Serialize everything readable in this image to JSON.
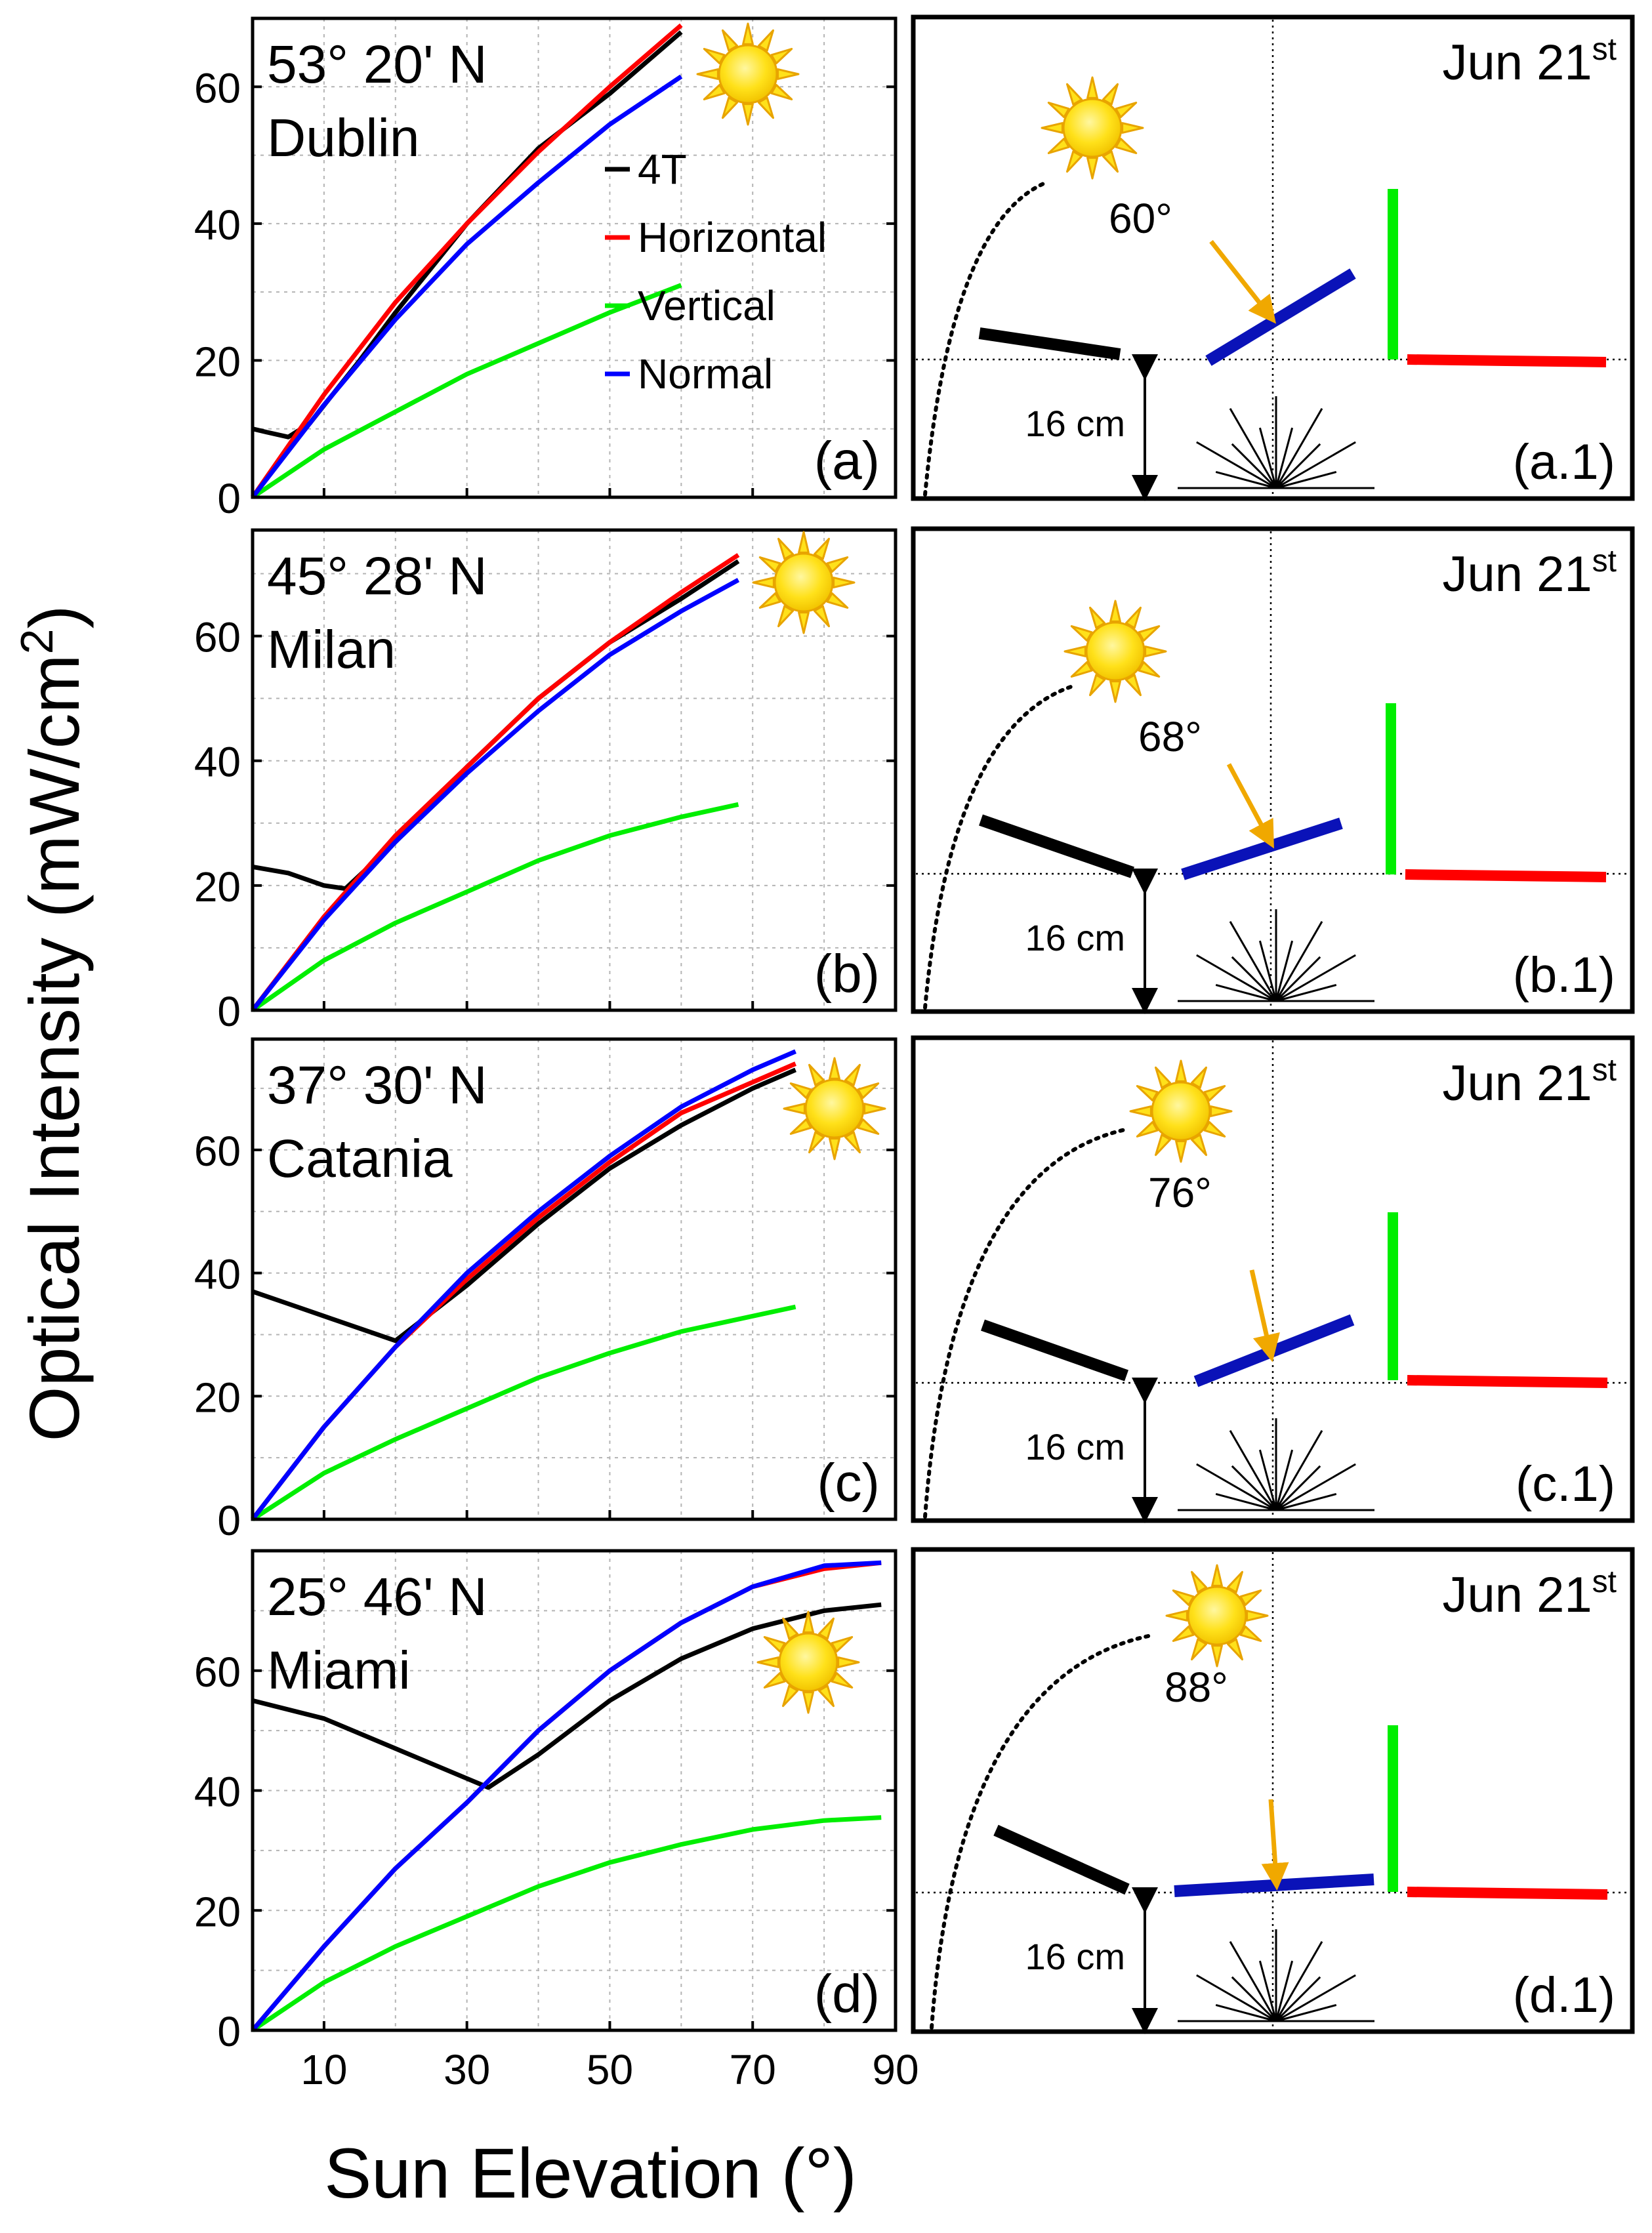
{
  "figure": {
    "ylabel": "Optical Intensity (mW/cm",
    "ylabel_sup": "2",
    "ylabel_close": ")",
    "xlabel": "Sun Elevation (°)",
    "x_ticks": [
      "10",
      "30",
      "50",
      "70",
      "90"
    ],
    "legend": [
      {
        "name": "4T",
        "color": "#000000"
      },
      {
        "name": "Horizontal",
        "color": "#ff0000"
      },
      {
        "name": "Vertical",
        "color": "#00ee00"
      },
      {
        "name": "Normal",
        "color": "#0000ff"
      }
    ]
  },
  "diagram_common": {
    "date_main": "Jun 21",
    "date_sup": "st",
    "height_label": "16 cm"
  },
  "chart_data": [
    {
      "type": "line",
      "panel": "(a)",
      "lat": "53° 20' N",
      "city": "Dublin",
      "xlim": [
        0,
        90
      ],
      "ylim": [
        0,
        70
      ],
      "y_ticks": [
        "0",
        "20",
        "40",
        "60"
      ],
      "y_tick_values": [
        0,
        20,
        40,
        60
      ],
      "xlabel": "Sun Elevation (°)",
      "ylabel": "Optical Intensity (mW/cm2)",
      "grid": true,
      "series": [
        {
          "name": "4T",
          "color": "#000000",
          "x": [
            0,
            2,
            5,
            8,
            15,
            20,
            30,
            40,
            50,
            60
          ],
          "y": [
            10,
            9.5,
            8.8,
            10.8,
            20,
            27,
            40,
            51,
            59,
            68
          ]
        },
        {
          "name": "Horizontal",
          "color": "#ff0000",
          "x": [
            0,
            10,
            20,
            30,
            40,
            50,
            60
          ],
          "y": [
            0,
            15,
            28.5,
            40,
            50.5,
            60,
            69
          ]
        },
        {
          "name": "Vertical",
          "color": "#00ee00",
          "x": [
            0,
            10,
            20,
            30,
            40,
            50,
            60
          ],
          "y": [
            0,
            7,
            12.5,
            18,
            22.5,
            27,
            31
          ]
        },
        {
          "name": "Normal",
          "color": "#0000ff",
          "x": [
            0,
            10,
            20,
            30,
            40,
            50,
            60
          ],
          "y": [
            0,
            13.5,
            26,
            37,
            46,
            54.5,
            61.5
          ]
        }
      ],
      "diagram": {
        "label": "(a.1)",
        "angle": "60°"
      }
    },
    {
      "type": "line",
      "panel": "(b)",
      "lat": "45° 28' N",
      "city": "Milan",
      "xlim": [
        0,
        90
      ],
      "ylim": [
        0,
        77
      ],
      "y_ticks": [
        "0",
        "20",
        "40",
        "60"
      ],
      "y_tick_values": [
        0,
        20,
        40,
        60
      ],
      "grid": true,
      "series": [
        {
          "name": "4T",
          "color": "#000000",
          "x": [
            0,
            5,
            10,
            13,
            20,
            30,
            40,
            50,
            60,
            68
          ],
          "y": [
            23,
            22,
            20,
            19.5,
            27,
            39,
            50,
            59,
            66,
            72
          ]
        },
        {
          "name": "Horizontal",
          "color": "#ff0000",
          "x": [
            0,
            10,
            20,
            30,
            40,
            50,
            60,
            68
          ],
          "y": [
            0,
            15,
            28,
            39,
            50,
            59,
            67,
            73
          ]
        },
        {
          "name": "Vertical",
          "color": "#00ee00",
          "x": [
            0,
            10,
            20,
            30,
            40,
            50,
            60,
            68
          ],
          "y": [
            0,
            8,
            14,
            19,
            24,
            28,
            31,
            33
          ]
        },
        {
          "name": "Normal",
          "color": "#0000ff",
          "x": [
            0,
            10,
            20,
            30,
            40,
            50,
            60,
            68
          ],
          "y": [
            0,
            14.5,
            27,
            38,
            48,
            57,
            64,
            69
          ]
        }
      ],
      "diagram": {
        "label": "(b.1)",
        "angle": "68°"
      }
    },
    {
      "type": "line",
      "panel": "(c)",
      "lat": "37° 30' N",
      "city": "Catania",
      "xlim": [
        0,
        90
      ],
      "ylim": [
        0,
        78
      ],
      "y_ticks": [
        "0",
        "20",
        "40",
        "60"
      ],
      "y_tick_values": [
        0,
        20,
        40,
        60
      ],
      "grid": true,
      "series": [
        {
          "name": "4T",
          "color": "#000000",
          "x": [
            0,
            5,
            10,
            15,
            20,
            30,
            40,
            50,
            60,
            70,
            76
          ],
          "y": [
            37,
            35,
            33,
            31,
            29,
            38,
            48,
            57,
            64,
            70,
            73
          ]
        },
        {
          "name": "Horizontal",
          "color": "#ff0000",
          "x": [
            0,
            10,
            20,
            30,
            40,
            50,
            60,
            70,
            76
          ],
          "y": [
            0,
            15,
            28,
            39,
            49,
            58,
            66,
            71,
            74
          ]
        },
        {
          "name": "Vertical",
          "color": "#00ee00",
          "x": [
            0,
            10,
            20,
            30,
            40,
            50,
            60,
            70,
            76
          ],
          "y": [
            0,
            7.5,
            13,
            18,
            23,
            27,
            30.5,
            33,
            34.5
          ]
        },
        {
          "name": "Normal",
          "color": "#0000ff",
          "x": [
            0,
            10,
            20,
            30,
            40,
            50,
            60,
            70,
            76
          ],
          "y": [
            0,
            15,
            28,
            40,
            50,
            59,
            67,
            73,
            76
          ]
        }
      ],
      "diagram": {
        "label": "(c.1)",
        "angle": "76°"
      }
    },
    {
      "type": "line",
      "panel": "(d)",
      "lat": "25° 46' N",
      "city": "Miami",
      "xlim": [
        0,
        90
      ],
      "ylim": [
        0,
        80
      ],
      "y_ticks": [
        "0",
        "20",
        "40",
        "60"
      ],
      "y_tick_values": [
        0,
        20,
        40,
        60
      ],
      "grid": true,
      "series": [
        {
          "name": "4T",
          "color": "#000000",
          "x": [
            0,
            10,
            20,
            30,
            33,
            40,
            50,
            60,
            70,
            80,
            88
          ],
          "y": [
            55,
            52,
            47,
            42,
            40.5,
            46,
            55,
            62,
            67,
            70,
            71
          ]
        },
        {
          "name": "Horizontal",
          "color": "#ff0000",
          "x": [
            0,
            10,
            20,
            30,
            40,
            50,
            60,
            70,
            80,
            88
          ],
          "y": [
            0,
            14,
            27,
            38,
            50,
            60,
            68,
            74,
            77,
            78
          ]
        },
        {
          "name": "Vertical",
          "color": "#00ee00",
          "x": [
            0,
            10,
            20,
            30,
            40,
            50,
            60,
            70,
            80,
            88
          ],
          "y": [
            0,
            8,
            14,
            19,
            24,
            28,
            31,
            33.5,
            35,
            35.5
          ]
        },
        {
          "name": "Normal",
          "color": "#0000ff",
          "x": [
            0,
            10,
            20,
            30,
            40,
            50,
            60,
            70,
            80,
            88
          ],
          "y": [
            0,
            14,
            27,
            38,
            50,
            60,
            68,
            74,
            77.5,
            78
          ]
        }
      ],
      "diagram": {
        "label": "(d.1)",
        "angle": "88°"
      }
    }
  ]
}
